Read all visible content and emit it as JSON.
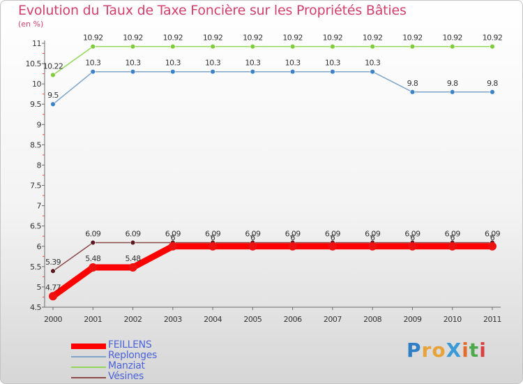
{
  "title": "Evolution du Taux de Taxe Foncière sur les Propriétés Bâties",
  "unit": "(en %)",
  "logo_text": "ProXiti",
  "chart_data": {
    "type": "line",
    "title": "Evolution du Taux de Taxe Foncière sur les Propriétés Bâties",
    "ylabel": "(en %)",
    "xlabel": "",
    "ylim": [
      4.5,
      11
    ],
    "yticks": [
      4.5,
      5,
      5.5,
      6,
      6.5,
      7,
      7.5,
      8,
      8.5,
      9,
      9.5,
      10,
      10.5,
      11
    ],
    "ytick_labels": [
      "4.5",
      "5",
      "5.5",
      "6",
      "6.5",
      "7",
      "7.5",
      "8",
      "8.5",
      "9",
      "9.5",
      "10",
      "10.5",
      "11"
    ],
    "categories": [
      "2000",
      "2001",
      "2002",
      "2003",
      "2004",
      "2005",
      "2006",
      "2007",
      "2008",
      "2009",
      "2010",
      "2011"
    ],
    "series": [
      {
        "name": "Manziat",
        "color": "#93d75a",
        "dot": "#7fcc3c",
        "values": [
          10.22,
          10.92,
          10.92,
          10.92,
          10.92,
          10.92,
          10.92,
          10.92,
          10.92,
          10.92,
          10.92,
          10.92
        ],
        "labels": [
          "10.22",
          "10.92",
          "10.92",
          "10.92",
          "10.92",
          "10.92",
          "10.92",
          "10.92",
          "10.92",
          "10.92",
          "10.92",
          "10.92"
        ]
      },
      {
        "name": "Replonges",
        "color": "#7fa4c9",
        "dot": "#3d82c6",
        "values": [
          9.5,
          10.3,
          10.3,
          10.3,
          10.3,
          10.3,
          10.3,
          10.3,
          10.3,
          9.8,
          9.8,
          9.8
        ],
        "labels": [
          "9.5",
          "10.3",
          "10.3",
          "10.3",
          "10.3",
          "10.3",
          "10.3",
          "10.3",
          "10.3",
          "9.8",
          "9.8",
          "9.8"
        ]
      },
      {
        "name": "Vésines",
        "color": "#8a4a4a",
        "dot": "#5a1a22",
        "values": [
          5.39,
          6.09,
          6.09,
          6.09,
          6.09,
          6.09,
          6.09,
          6.09,
          6.09,
          6.09,
          6.09,
          6.09
        ],
        "labels": [
          "5.39",
          "6.09",
          "6.09",
          "6.09",
          "6.09",
          "6.09",
          "6.09",
          "6.09",
          "6.09",
          "6.09",
          "6.09",
          "6.09"
        ]
      },
      {
        "name": "FEILLENS",
        "color": "#ff0000",
        "dot": "#ee1111",
        "values": [
          4.77,
          5.48,
          5.48,
          6,
          6,
          6,
          6,
          6,
          6,
          6,
          6,
          6
        ],
        "labels": [
          "4.77",
          "5.48",
          "5.48",
          "6",
          "6",
          "6",
          "6",
          "6",
          "6",
          "6",
          "6",
          "6"
        ]
      }
    ],
    "legend": [
      {
        "name": "FEILLENS",
        "color": "#ff0000",
        "thick": true
      },
      {
        "name": "Replonges",
        "color": "#7fa4c9",
        "thick": false
      },
      {
        "name": "Manziat",
        "color": "#93d75a",
        "thick": false
      },
      {
        "name": "Vésines",
        "color": "#8a4a4a",
        "thick": false
      }
    ]
  }
}
